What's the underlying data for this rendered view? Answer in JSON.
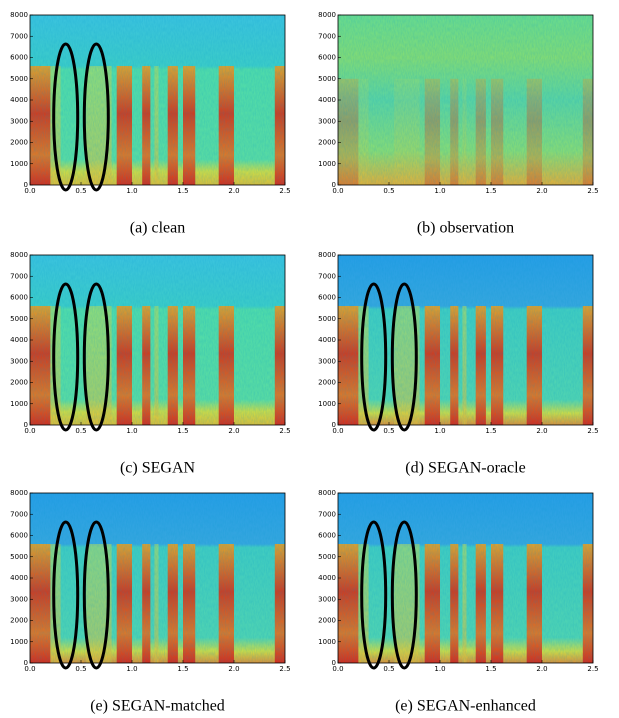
{
  "chart_data": [
    {
      "type": "spectrogram",
      "caption": "(a) clean",
      "xlim": [
        0,
        2.5
      ],
      "ylim": [
        0,
        8000
      ],
      "xticks": [
        {
          "value": 0,
          "label": "0.0"
        },
        {
          "value": 0.5,
          "label": "0.5"
        },
        {
          "value": 1,
          "label": "1.0"
        },
        {
          "value": 1.5,
          "label": "1.5"
        },
        {
          "value": 2,
          "label": "2.0"
        },
        {
          "value": 2.5,
          "label": "2.5"
        }
      ],
      "yticks": [
        0,
        1000,
        2000,
        3000,
        4000,
        5000,
        6000,
        7000,
        8000
      ]
    },
    {
      "type": "spectrogram",
      "caption": "(b) observation",
      "xlim": [
        0,
        2.5
      ],
      "ylim": [
        0,
        8000
      ],
      "xticks": [
        {
          "value": 0,
          "label": "0.0"
        },
        {
          "value": 0.5,
          "label": "0.5"
        },
        {
          "value": 1,
          "label": "1.0"
        },
        {
          "value": 1.5,
          "label": "1.5"
        },
        {
          "value": 2,
          "label": "2.0"
        },
        {
          "value": 2.5,
          "label": "2.5"
        }
      ],
      "yticks": [
        0,
        1000,
        2000,
        3000,
        4000,
        5000,
        6000,
        7000,
        8000
      ]
    },
    {
      "type": "spectrogram",
      "caption": "(c) SEGAN",
      "xlim": [
        0,
        2.5
      ],
      "ylim": [
        0,
        8000
      ],
      "xticks": [
        {
          "value": 0,
          "label": "0.0"
        },
        {
          "value": 0.5,
          "label": "0.5"
        },
        {
          "value": 1,
          "label": "1.0"
        },
        {
          "value": 1.5,
          "label": "1.5"
        },
        {
          "value": 2,
          "label": "2.0"
        },
        {
          "value": 2.5,
          "label": "2.5"
        }
      ],
      "yticks": [
        0,
        1000,
        2000,
        3000,
        4000,
        5000,
        6000,
        7000,
        8000
      ]
    },
    {
      "type": "spectrogram",
      "caption": "(d) SEGAN-oracle",
      "xlim": [
        0,
        2.5
      ],
      "ylim": [
        0,
        8000
      ],
      "xticks": [
        {
          "value": 0,
          "label": "0.0"
        },
        {
          "value": 0.5,
          "label": "0.5"
        },
        {
          "value": 1,
          "label": "1.0"
        },
        {
          "value": 1.5,
          "label": "1.5"
        },
        {
          "value": 2,
          "label": "2.0"
        },
        {
          "value": 2.5,
          "label": "2.5"
        }
      ],
      "yticks": [
        0,
        1000,
        2000,
        3000,
        4000,
        5000,
        6000,
        7000,
        8000
      ]
    },
    {
      "type": "spectrogram",
      "caption": "(e) SEGAN-matched",
      "xlim": [
        0,
        2.5
      ],
      "ylim": [
        0,
        8000
      ],
      "xticks": [
        {
          "value": 0,
          "label": "0.0"
        },
        {
          "value": 0.5,
          "label": "0.5"
        },
        {
          "value": 1,
          "label": "1.0"
        },
        {
          "value": 1.5,
          "label": "1.5"
        },
        {
          "value": 2,
          "label": "2.0"
        },
        {
          "value": 2.5,
          "label": "2.5"
        }
      ],
      "yticks": [
        0,
        1000,
        2000,
        3000,
        4000,
        5000,
        6000,
        7000,
        8000
      ]
    },
    {
      "type": "spectrogram",
      "caption": "(e) SEGAN-enhanced",
      "xlim": [
        0,
        2.5
      ],
      "ylim": [
        0,
        8000
      ],
      "xticks": [
        {
          "value": 0,
          "label": "0.0"
        },
        {
          "value": 0.5,
          "label": "0.5"
        },
        {
          "value": 1,
          "label": "1.0"
        },
        {
          "value": 1.5,
          "label": "1.5"
        },
        {
          "value": 2,
          "label": "2.0"
        },
        {
          "value": 2.5,
          "label": "2.5"
        }
      ],
      "yticks": [
        0,
        1000,
        2000,
        3000,
        4000,
        5000,
        6000,
        7000,
        8000
      ]
    }
  ]
}
